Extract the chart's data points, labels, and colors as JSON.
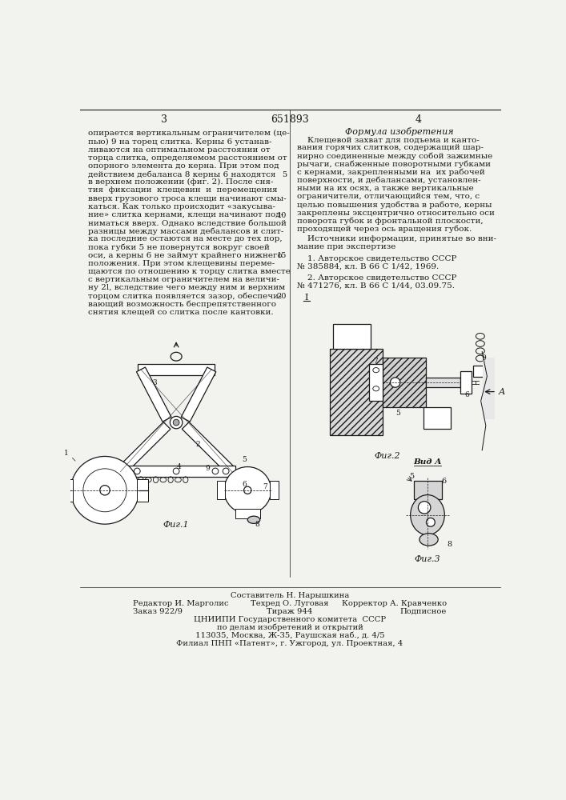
{
  "patent_number": "651893",
  "page_left": "3",
  "page_right": "4",
  "bg_color": "#f2f2ee",
  "text_color": "#1a1a1a",
  "title_formula": "Формула изобретения",
  "formula_text_lines": [
    "    Клещевой захват для подъема и канто-",
    "вания горячих слитков, содержащий шар-",
    "нирно соединенные между собой зажимные",
    "рычаги, снабженные поворотными губками",
    "с кернами, закрепленными на  их рабочей",
    "поверхности, и дебалансами, установлен-",
    "ными на их осях, а также вертикальные",
    "ограничители, отличающийся тем, что, с",
    "целью повышения удобства в работе, керны",
    "закреплены эксцентрично относительно оси",
    "поворота губок и фронтальной плоскости,",
    "проходящей через ось вращения губок."
  ],
  "sources_title_lines": [
    "    Источники информации, принятые во вни-",
    "мание при экспертизе"
  ],
  "source1_lines": [
    "    1. Авторское свидетельство СССР",
    "№ 385884, кл. В 66 С 1/42, 1969."
  ],
  "source2_lines": [
    "    2. Авторское свидетельство СССР",
    "№ 471276, кл. В 66 С 1/44, 03.09.75."
  ],
  "left_text_lines": [
    "опирается вертикальным ограничителем (це-",
    "пью) 9 на торец слитка. Керны 6 устанав-",
    "ливаются на оптимальном расстоянии от",
    "торца слитка, определяемом расстоянием от",
    "опорного элемента до керна. При этом под",
    "действием дебаланса 8 керны 6 находятся",
    "в верхнем положении (фиг. 2). После сня-",
    "тия  фиксации  клещевин  и  перемещения",
    "вверх грузового троса клещи начинают смы-",
    "каться. Как только происходит «закусыва-",
    "ние» слитка кернами, клещи начинают под-",
    "ниматься вверх. Однако вследствие большой",
    "разницы между массами дебалансов и слит-",
    "ка последние остаются на месте до тех пор,",
    "пока губки 5 не повернутся вокруг своей",
    "оси, а керны 6 не займут крайнего нижнего",
    "положения. При этом клещевины переме-",
    "щаются по отношению к торцу слитка вместе",
    "с вертикальным ограничителем на величи-",
    "ну 2l, вследствие чего между ним и верхним",
    "торцом слитка появляется зазор, обеспечи-",
    "вающий возможность беспрепятственного",
    "снятия клещей со слитка после кантовки."
  ],
  "line_numbers": [
    "5",
    "10",
    "15",
    "20"
  ],
  "line_number_rows": [
    6,
    11,
    16,
    21
  ],
  "fig1_label": "Фиг.1",
  "fig2_label": "Фиг.2",
  "fig3_label": "Фиг.3",
  "vida_label": "Вид А",
  "arrow_label": "А",
  "footer_sestavitel": "Составитель Н. Нарышкина",
  "footer_row2_left": "Редактор И. Марголис",
  "footer_row2_mid": "Техред О. Луговая",
  "footer_row2_right": "Корректор А. Кравченко",
  "footer_row3_left": "Заказ 922/9",
  "footer_row3_mid": "Тираж 944",
  "footer_row3_right": "Подписное",
  "footer_cniipи": "ЦНИИПИ Государственного комитета  СССР",
  "footer_po_delam": "по делам изобретений и открытий",
  "footer_addr1": "113035, Москва, Ж-35, Раушская наб., д. 4/5",
  "footer_addr2": "Филиал ПНП «Патент», г. Ужгород, ул. Проектная, 4"
}
